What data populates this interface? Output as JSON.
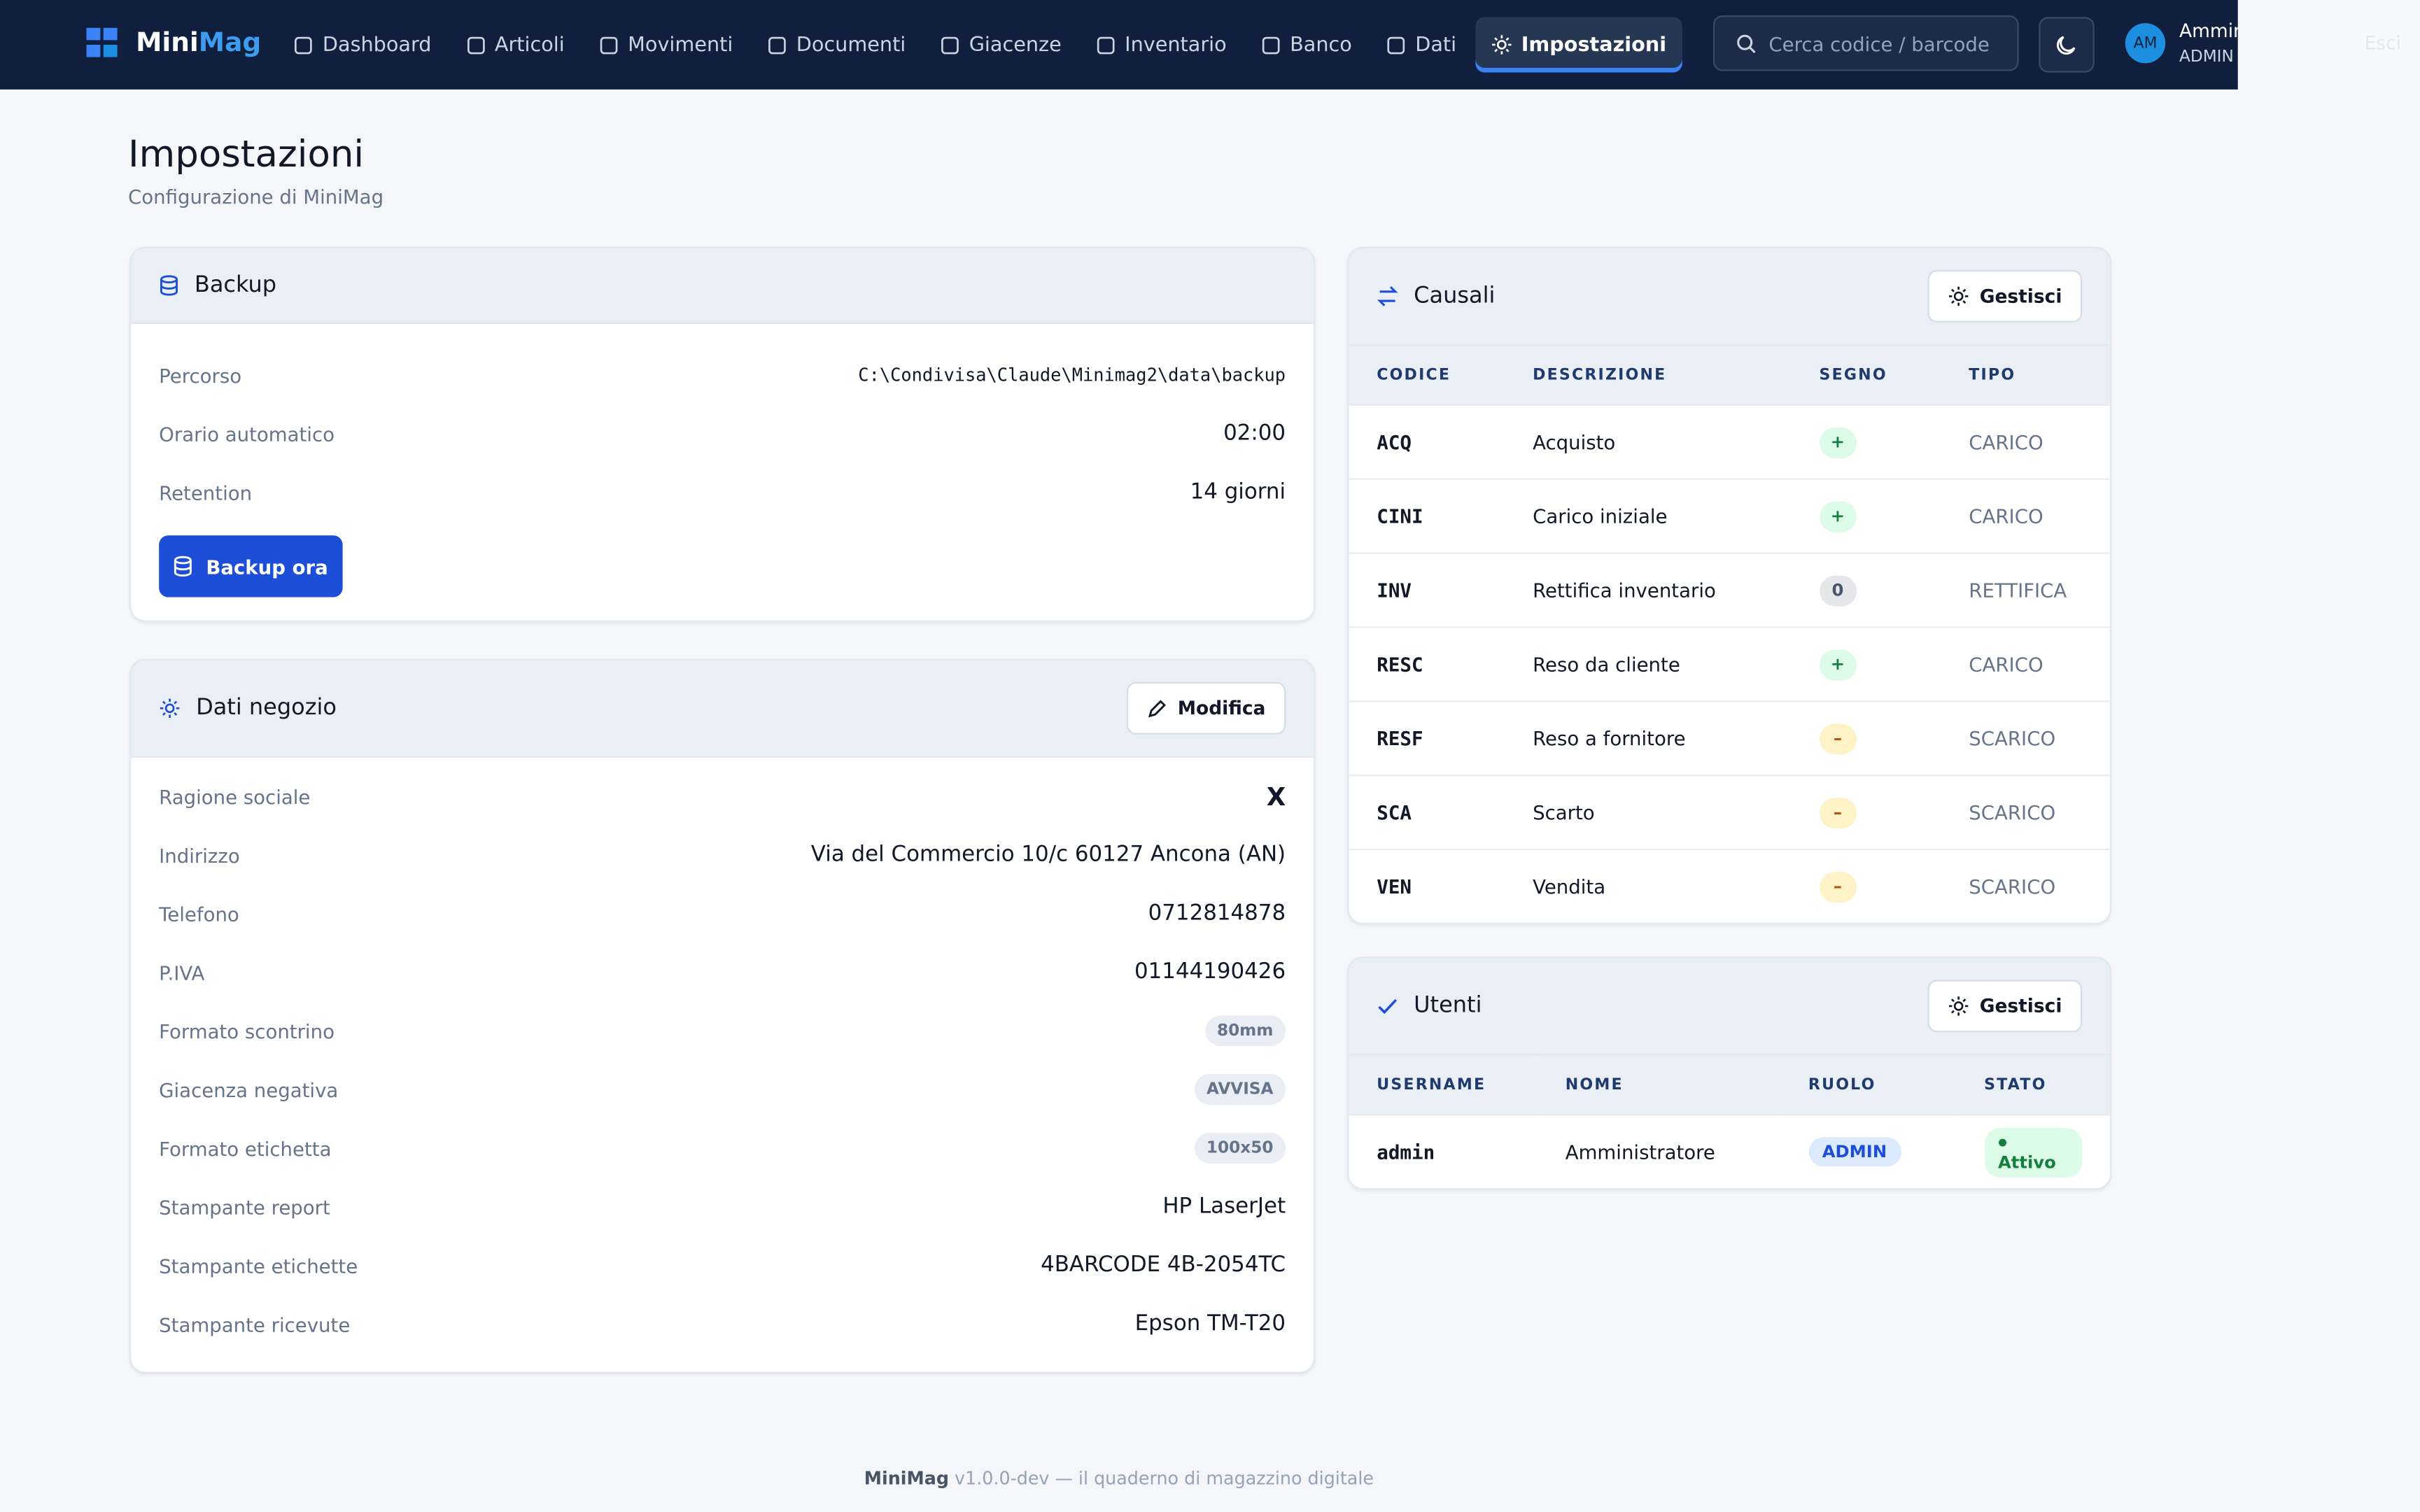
{
  "nav": {
    "logo": {
      "part1": "Mini",
      "part2": "Mag"
    },
    "items": [
      "Dashboard",
      "Articoli",
      "Movimenti",
      "Documenti",
      "Giacenze",
      "Inventario",
      "Banco",
      "Dati",
      "Impostazioni"
    ],
    "search_placeholder": "Cerca codice / barcode",
    "user": {
      "initials": "AM",
      "name": "Amministratore",
      "role": "ADMIN",
      "logout": "Esci"
    }
  },
  "header": {
    "title": "Impostazioni",
    "subtitle": "Configurazione di MiniMag"
  },
  "backup": {
    "title": "Backup",
    "rows": [
      {
        "label": "Percorso",
        "value": "C:\\Condivisa\\Claude\\Minimag2\\data\\backup",
        "style": "mono"
      },
      {
        "label": "Orario automatico",
        "value": "02:00"
      },
      {
        "label": "Retention",
        "value": "14 giorni"
      }
    ],
    "button": "Backup ora"
  },
  "shop": {
    "title": "Dati negozio",
    "button": "Modifica",
    "rows": [
      {
        "label": "Ragione sociale",
        "value": "X",
        "style": "bold"
      },
      {
        "label": "Indirizzo",
        "value": "Via del Commercio 10/c 60127 Ancona (AN)"
      },
      {
        "label": "Telefono",
        "value": "0712814878"
      },
      {
        "label": "P.IVA",
        "value": "01144190426"
      },
      {
        "label": "Formato scontrino",
        "value": "80mm",
        "style": "badge"
      },
      {
        "label": "Giacenza negativa",
        "value": "AVVISA",
        "style": "badge"
      },
      {
        "label": "Formato etichetta",
        "value": "100x50",
        "style": "badge"
      },
      {
        "label": "Stampante report",
        "value": "HP LaserJet"
      },
      {
        "label": "Stampante etichette",
        "value": "4BARCODE 4B-2054TC"
      },
      {
        "label": "Stampante ricevute",
        "value": "Epson TM-T20"
      }
    ]
  },
  "causali": {
    "title": "Causali",
    "button": "Gestisci",
    "columns": [
      "CODICE",
      "DESCRIZIONE",
      "SEGNO",
      "TIPO"
    ],
    "rows": [
      [
        "ACQ",
        "Acquisto",
        "+",
        "CARICO"
      ],
      [
        "CINI",
        "Carico iniziale",
        "+",
        "CARICO"
      ],
      [
        "INV",
        "Rettifica inventario",
        "0",
        "RETTIFICA"
      ],
      [
        "RESC",
        "Reso da cliente",
        "+",
        "CARICO"
      ],
      [
        "RESF",
        "Reso a fornitore",
        "–",
        "SCARICO"
      ],
      [
        "SCA",
        "Scarto",
        "–",
        "SCARICO"
      ],
      [
        "VEN",
        "Vendita",
        "–",
        "SCARICO"
      ]
    ]
  },
  "utenti": {
    "title": "Utenti",
    "button": "Gestisci",
    "columns": [
      "USERNAME",
      "NOME",
      "RUOLO",
      "STATO"
    ],
    "rows": [
      [
        "admin",
        "Amministratore",
        "ADMIN",
        "Attivo"
      ]
    ]
  },
  "footer": {
    "brand": "MiniMag",
    "text": "v1.0.0-dev — il quaderno di magazzino digitale"
  }
}
